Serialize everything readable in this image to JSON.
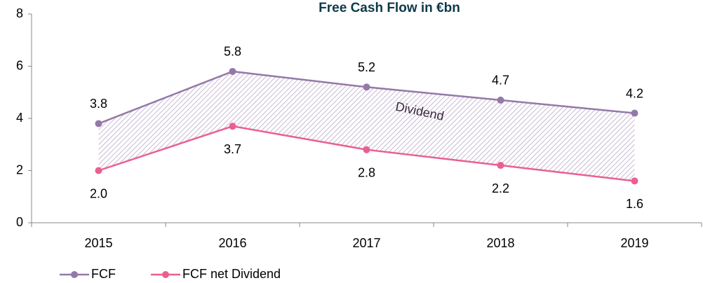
{
  "chart_data": {
    "type": "line",
    "title": "Free Cash Flow in €bn",
    "categories": [
      "2015",
      "2016",
      "2017",
      "2018",
      "2019"
    ],
    "series": [
      {
        "name": "FCF",
        "color": "#9479a8",
        "values": [
          3.8,
          5.8,
          5.2,
          4.7,
          4.2
        ],
        "value_labels": [
          "3.8",
          "5.8",
          "5.2",
          "4.7",
          "4.2"
        ]
      },
      {
        "name": "FCF net Dividend",
        "color": "#ea5f91",
        "values": [
          2.0,
          3.7,
          2.8,
          2.2,
          1.6
        ],
        "value_labels": [
          "2.0",
          "3.7",
          "2.8",
          "2.2",
          "1.6"
        ]
      }
    ],
    "annotation": "Dividend",
    "ylim": [
      0,
      8
    ],
    "yticks": [
      0,
      2,
      4,
      6,
      8
    ],
    "legend": "bottom-left"
  }
}
